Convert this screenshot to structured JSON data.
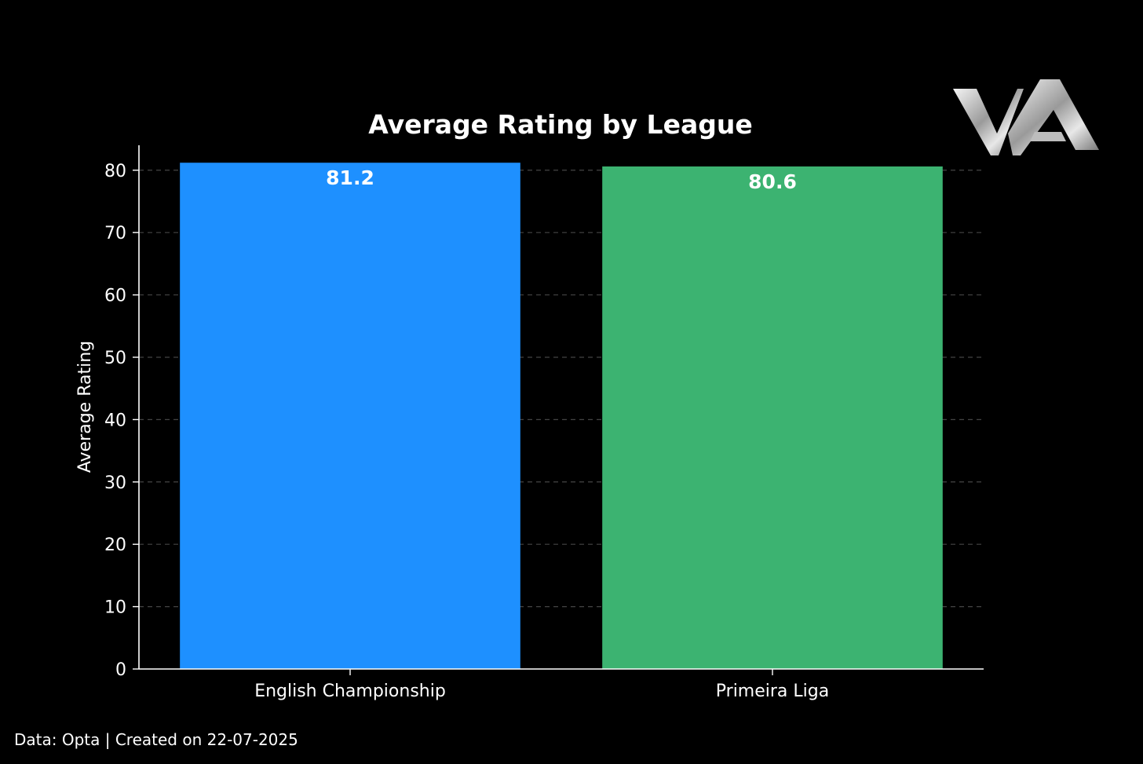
{
  "footer": {
    "credit": "Data: Opta | Created on 22-07-2025"
  },
  "logo": {
    "text": "WA"
  },
  "chart_data": {
    "type": "bar",
    "title": "Average Rating by League",
    "xlabel": "",
    "ylabel": "Average Rating",
    "categories": [
      "English Championship",
      "Primeira Liga"
    ],
    "values": [
      81.2,
      80.6
    ],
    "data_labels": [
      "81.2",
      "80.6"
    ],
    "colors": [
      "#1e90ff",
      "#3cb371"
    ],
    "ylim": [
      0,
      84
    ],
    "yticks": [
      0,
      10,
      20,
      30,
      40,
      50,
      60,
      70,
      80
    ],
    "grid": true,
    "legend": "none",
    "background": "#000000",
    "text_color": "#ffffff"
  }
}
